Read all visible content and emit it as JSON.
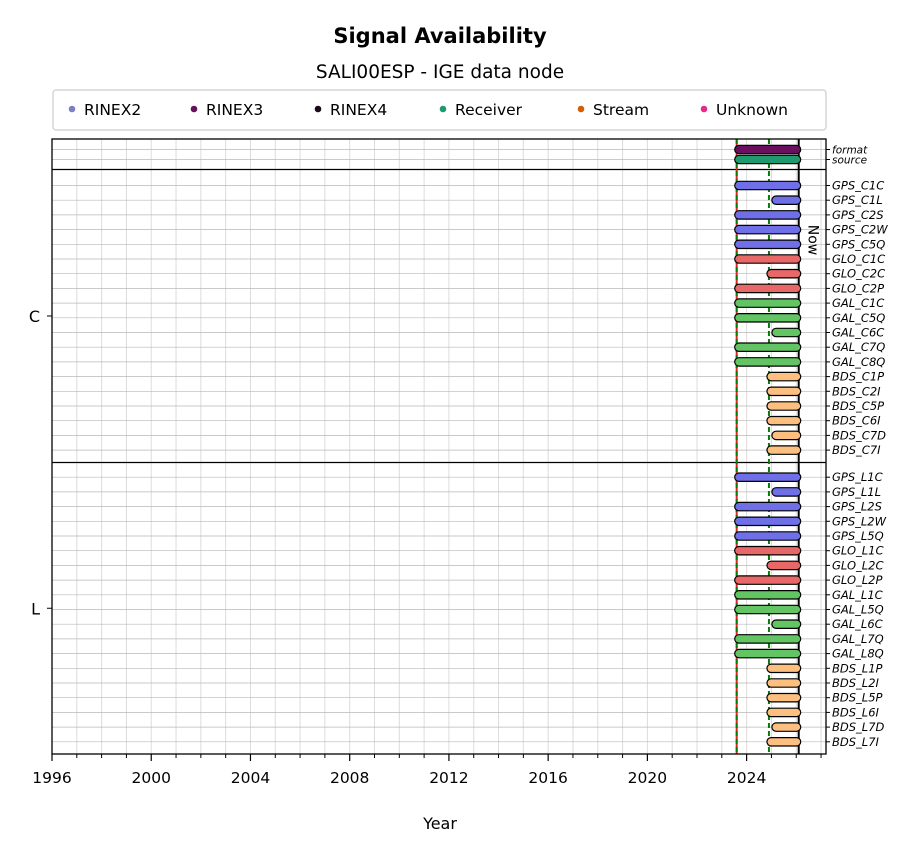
{
  "chart_data": {
    "type": "timeline",
    "title": "Signal Availability",
    "subtitle": "SALI00ESP - IGE data node",
    "xlabel": "Year",
    "xlim": [
      1996,
      2027.2
    ],
    "x_ticks": [
      1996,
      2000,
      2004,
      2008,
      2012,
      2016,
      2020,
      2024
    ],
    "x_tick_labels": [
      "1996",
      "2000",
      "2004",
      "2008",
      "2012",
      "2016",
      "2020",
      "2024"
    ],
    "legend": [
      {
        "label": "RINEX2",
        "color": "#7b7fc4"
      },
      {
        "label": "RINEX3",
        "color": "#6a0f5f"
      },
      {
        "label": "RINEX4",
        "color": "#1a0a1a"
      },
      {
        "label": "Receiver",
        "color": "#1f9a6e"
      },
      {
        "label": "Stream",
        "color": "#d45f00"
      },
      {
        "label": "Unknown",
        "color": "#e7298a"
      }
    ],
    "vlines": [
      {
        "x": 2023.6,
        "color": "#d62728",
        "style": "solid"
      },
      {
        "x": 2023.6,
        "color": "#008000",
        "style": "dashed"
      },
      {
        "x": 2024.9,
        "color": "#008000",
        "style": "dashed"
      },
      {
        "x": 2026.1,
        "color": "#000000",
        "style": "solid",
        "label": "Now"
      }
    ],
    "groups": [
      {
        "label": "",
        "rows": [
          {
            "name": "format",
            "start": 2023.6,
            "end": 2026.1,
            "color": "#6a0f5f"
          },
          {
            "name": "source",
            "start": 2023.6,
            "end": 2026.1,
            "color": "#1f9a6e"
          }
        ]
      },
      {
        "label": "C",
        "rows": [
          {
            "name": "GPS_C1C",
            "start": 2023.6,
            "end": 2026.1,
            "color": "#6f6fe8"
          },
          {
            "name": "GPS_C1L",
            "start": 2025.1,
            "end": 2026.1,
            "color": "#6f6fe8"
          },
          {
            "name": "GPS_C2S",
            "start": 2023.6,
            "end": 2026.1,
            "color": "#6f6fe8"
          },
          {
            "name": "GPS_C2W",
            "start": 2023.6,
            "end": 2026.1,
            "color": "#6f6fe8"
          },
          {
            "name": "GPS_C5Q",
            "start": 2023.6,
            "end": 2026.1,
            "color": "#6f6fe8"
          },
          {
            "name": "GLO_C1C",
            "start": 2023.6,
            "end": 2026.1,
            "color": "#e86868"
          },
          {
            "name": "GLO_C2C",
            "start": 2024.9,
            "end": 2026.1,
            "color": "#e86868"
          },
          {
            "name": "GLO_C2P",
            "start": 2023.6,
            "end": 2026.1,
            "color": "#e86868"
          },
          {
            "name": "GAL_C1C",
            "start": 2023.6,
            "end": 2026.1,
            "color": "#62c462"
          },
          {
            "name": "GAL_C5Q",
            "start": 2023.6,
            "end": 2026.1,
            "color": "#62c462"
          },
          {
            "name": "GAL_C6C",
            "start": 2025.1,
            "end": 2026.1,
            "color": "#62c462"
          },
          {
            "name": "GAL_C7Q",
            "start": 2023.6,
            "end": 2026.1,
            "color": "#62c462"
          },
          {
            "name": "GAL_C8Q",
            "start": 2023.6,
            "end": 2026.1,
            "color": "#62c462"
          },
          {
            "name": "BDS_C1P",
            "start": 2024.9,
            "end": 2026.1,
            "color": "#fdbf80"
          },
          {
            "name": "BDS_C2I",
            "start": 2024.9,
            "end": 2026.1,
            "color": "#fdbf80"
          },
          {
            "name": "BDS_C5P",
            "start": 2024.9,
            "end": 2026.1,
            "color": "#fdbf80"
          },
          {
            "name": "BDS_C6I",
            "start": 2024.9,
            "end": 2026.1,
            "color": "#fdbf80"
          },
          {
            "name": "BDS_C7D",
            "start": 2025.1,
            "end": 2026.1,
            "color": "#fdbf80"
          },
          {
            "name": "BDS_C7I",
            "start": 2024.9,
            "end": 2026.1,
            "color": "#fdbf80"
          }
        ]
      },
      {
        "label": "L",
        "rows": [
          {
            "name": "GPS_L1C",
            "start": 2023.6,
            "end": 2026.1,
            "color": "#6f6fe8"
          },
          {
            "name": "GPS_L1L",
            "start": 2025.1,
            "end": 2026.1,
            "color": "#6f6fe8"
          },
          {
            "name": "GPS_L2S",
            "start": 2023.6,
            "end": 2026.1,
            "color": "#6f6fe8"
          },
          {
            "name": "GPS_L2W",
            "start": 2023.6,
            "end": 2026.1,
            "color": "#6f6fe8"
          },
          {
            "name": "GPS_L5Q",
            "start": 2023.6,
            "end": 2026.1,
            "color": "#6f6fe8"
          },
          {
            "name": "GLO_L1C",
            "start": 2023.6,
            "end": 2026.1,
            "color": "#e86868"
          },
          {
            "name": "GLO_L2C",
            "start": 2024.9,
            "end": 2026.1,
            "color": "#e86868"
          },
          {
            "name": "GLO_L2P",
            "start": 2023.6,
            "end": 2026.1,
            "color": "#e86868"
          },
          {
            "name": "GAL_L1C",
            "start": 2023.6,
            "end": 2026.1,
            "color": "#62c462"
          },
          {
            "name": "GAL_L5Q",
            "start": 2023.6,
            "end": 2026.1,
            "color": "#62c462"
          },
          {
            "name": "GAL_L6C",
            "start": 2025.1,
            "end": 2026.1,
            "color": "#62c462"
          },
          {
            "name": "GAL_L7Q",
            "start": 2023.6,
            "end": 2026.1,
            "color": "#62c462"
          },
          {
            "name": "GAL_L8Q",
            "start": 2023.6,
            "end": 2026.1,
            "color": "#62c462"
          },
          {
            "name": "BDS_L1P",
            "start": 2024.9,
            "end": 2026.1,
            "color": "#fdbf80"
          },
          {
            "name": "BDS_L2I",
            "start": 2024.9,
            "end": 2026.1,
            "color": "#fdbf80"
          },
          {
            "name": "BDS_L5P",
            "start": 2024.9,
            "end": 2026.1,
            "color": "#fdbf80"
          },
          {
            "name": "BDS_L6I",
            "start": 2024.9,
            "end": 2026.1,
            "color": "#fdbf80"
          },
          {
            "name": "BDS_L7D",
            "start": 2025.1,
            "end": 2026.1,
            "color": "#fdbf80"
          },
          {
            "name": "BDS_L7I",
            "start": 2024.9,
            "end": 2026.1,
            "color": "#fdbf80"
          }
        ]
      }
    ]
  }
}
